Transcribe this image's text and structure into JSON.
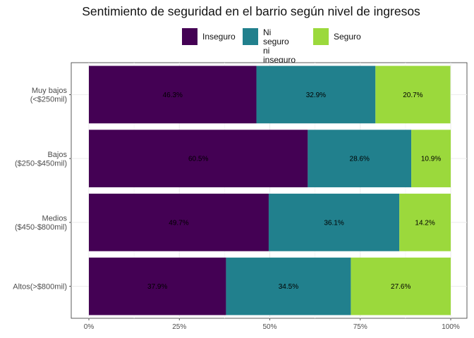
{
  "chart_data": {
    "type": "bar",
    "orientation": "horizontal",
    "stacked": true,
    "title": "Sentimiento de seguridad en el barrio según nivel de ingresos",
    "xlabel": "",
    "ylabel": "",
    "xlim": [
      0,
      100
    ],
    "x_ticks": [
      "0%",
      "25%",
      "50%",
      "75%",
      "100%"
    ],
    "grid": true,
    "legend_position": "top",
    "categories": [
      "Muy bajos\n(<$250mil)",
      "Bajos\n($250-$450mil)",
      "Medios\n($450-$800mil)",
      "Altos(>$800mil)"
    ],
    "series": [
      {
        "name": "Inseguro",
        "color": "#440154",
        "values": [
          46.3,
          60.5,
          49.7,
          37.9
        ],
        "labels": [
          "46.3%",
          "60.5%",
          "49.7%",
          "37.9%"
        ]
      },
      {
        "name": "Ni seguro\nni inseguro",
        "color": "#21808D",
        "values": [
          32.9,
          28.6,
          36.1,
          34.5
        ],
        "labels": [
          "32.9%",
          "28.6%",
          "36.1%",
          "34.5%"
        ]
      },
      {
        "name": "Seguro",
        "color": "#9BD93C",
        "values": [
          20.7,
          10.9,
          14.2,
          27.6
        ],
        "labels": [
          "20.7%",
          "10.9%",
          "14.2%",
          "27.6%"
        ]
      }
    ]
  }
}
